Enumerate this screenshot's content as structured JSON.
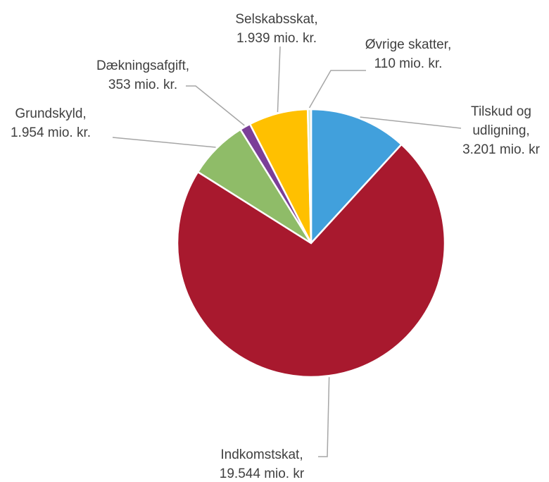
{
  "chart_data": {
    "type": "pie",
    "categories": [
      "Tilskud og udligning,",
      "Indkomstskat,",
      "Grundskyld,",
      "Dækningsafgift,",
      "Selskabsskat,",
      "Øvrige skatter,"
    ],
    "values": [
      3201,
      19544,
      1954,
      353,
      1939,
      110
    ],
    "value_labels": [
      "3.201 mio. kr",
      "19.544 mio. kr",
      "1.954 mio. kr.",
      "353 mio. kr.",
      "1.939 mio. kr.",
      "110 mio. kr."
    ],
    "colors": [
      "#41a0dc",
      "#a8192e",
      "#8fbc68",
      "#7b3f98",
      "#ffc000",
      "#d8e6c6"
    ]
  }
}
